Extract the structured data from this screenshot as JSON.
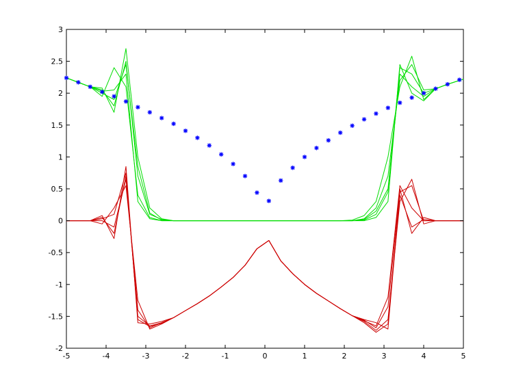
{
  "chart_data": {
    "type": "line",
    "title": "",
    "xlabel": "",
    "ylabel": "",
    "xlim": [
      -5,
      5
    ],
    "ylim": [
      -2,
      3
    ],
    "grid": false,
    "box": true,
    "x_ticks": [
      -5,
      -4,
      -3,
      -2,
      -1,
      0,
      1,
      2,
      3,
      4,
      5
    ],
    "y_ticks": [
      -2,
      -1.5,
      -1,
      -0.5,
      0,
      0.5,
      1,
      1.5,
      2,
      2.5,
      3
    ],
    "x_tick_labels": [
      "-5",
      "-4",
      "-3",
      "-2",
      "-1",
      "0",
      "1",
      "2",
      "3",
      "4",
      "5"
    ],
    "y_tick_labels": [
      "-2",
      "-1.5",
      "-1",
      "-0.5",
      "0",
      "0.5",
      "1",
      "1.5",
      "2",
      "2.5",
      "3"
    ],
    "colors": {
      "green": "#00dd00",
      "red": "#cc0000",
      "marker": "#0000ff",
      "axis": "#000000"
    },
    "series": [
      {
        "marker": "*",
        "color": "#0000ff",
        "x": [
          -5.0,
          -4.7,
          -4.4,
          -4.1,
          -3.8,
          -3.5,
          -3.2,
          -2.9,
          -2.6,
          -2.3,
          -2.0,
          -1.7,
          -1.4,
          -1.1,
          -0.8,
          -0.5,
          -0.2,
          0.1,
          0.4,
          0.7,
          1.0,
          1.3,
          1.6,
          1.9,
          2.2,
          2.5,
          2.8,
          3.1,
          3.4,
          3.7,
          4.0,
          4.3,
          4.6,
          4.9
        ],
        "y": [
          2.24,
          2.17,
          2.1,
          2.02,
          1.95,
          1.87,
          1.78,
          1.7,
          1.61,
          1.52,
          1.41,
          1.3,
          1.18,
          1.04,
          0.89,
          0.7,
          0.44,
          0.31,
          0.63,
          0.83,
          1.0,
          1.14,
          1.26,
          1.38,
          1.49,
          1.59,
          1.68,
          1.77,
          1.85,
          1.93,
          2.0,
          2.07,
          2.14,
          2.21
        ]
      },
      {
        "color": "#00dd00",
        "x": [
          -5,
          -4.7,
          -4.4,
          -4.1,
          -3.8,
          -3.5,
          -3.2,
          -2.9,
          -2.6,
          -2.3,
          -2.0,
          -1.7,
          -1.4,
          -1.1,
          -0.8,
          -0.5,
          -0.2,
          0.1,
          0.4,
          0.7,
          1.0,
          1.3,
          1.6,
          1.9,
          2.2,
          2.5,
          2.8,
          3.1,
          3.4,
          3.7,
          4.0,
          4.3,
          4.6,
          5
        ],
        "y": [
          2.24,
          2.17,
          2.1,
          2.05,
          1.8,
          2.5,
          0.7,
          0.1,
          0.02,
          0,
          0,
          0,
          0,
          0,
          0,
          0,
          0,
          0,
          0,
          0,
          0,
          0,
          0,
          0,
          0,
          0.02,
          0.15,
          0.5,
          2.3,
          2.1,
          1.95,
          2.07,
          2.14,
          2.22
        ]
      },
      {
        "color": "#00dd00",
        "x": [
          -5,
          -4.7,
          -4.4,
          -4.1,
          -3.8,
          -3.5,
          -3.2,
          -2.9,
          -2.6,
          -2.3,
          -2.0,
          -1.7,
          -1.4,
          -1.1,
          -0.8,
          -0.5,
          -0.2,
          0.1,
          0.4,
          0.7,
          1.0,
          1.3,
          1.6,
          1.9,
          2.2,
          2.5,
          2.8,
          3.1,
          3.4,
          3.7,
          4.0,
          4.3,
          4.6,
          5
        ],
        "y": [
          2.24,
          2.17,
          2.1,
          1.95,
          2.4,
          2.1,
          0.4,
          0.05,
          0,
          0,
          0,
          0,
          0,
          0,
          0,
          0,
          0,
          0,
          0,
          0,
          0,
          0,
          0,
          0,
          0,
          0,
          0.05,
          0.3,
          2.45,
          2.0,
          1.88,
          2.07,
          2.14,
          2.22
        ]
      },
      {
        "color": "#00dd00",
        "x": [
          -5,
          -4.7,
          -4.4,
          -4.1,
          -3.8,
          -3.5,
          -3.2,
          -2.9,
          -2.6,
          -2.3,
          -2.0,
          -1.7,
          -1.4,
          -1.1,
          -0.8,
          -0.5,
          -0.2,
          0.1,
          0.4,
          0.7,
          1.0,
          1.3,
          1.6,
          1.9,
          2.2,
          2.5,
          2.8,
          3.1,
          3.4,
          3.7,
          4.0,
          4.3,
          4.6,
          5
        ],
        "y": [
          2.24,
          2.17,
          2.1,
          2.08,
          1.7,
          2.7,
          1.0,
          0.2,
          0.03,
          0,
          0,
          0,
          0,
          0,
          0,
          0,
          0,
          0,
          0,
          0,
          0,
          0,
          0,
          0,
          0.01,
          0.08,
          0.3,
          1.0,
          2.1,
          2.58,
          1.9,
          2.07,
          2.14,
          2.22
        ]
      },
      {
        "color": "#00dd00",
        "x": [
          -5,
          -4.7,
          -4.4,
          -4.1,
          -3.8,
          -3.5,
          -3.2,
          -2.9,
          -2.6,
          -2.3,
          -2.0,
          -1.7,
          -1.4,
          -1.1,
          -0.8,
          -0.5,
          -0.2,
          0.1,
          0.4,
          0.7,
          1.0,
          1.3,
          1.6,
          1.9,
          2.2,
          2.5,
          2.8,
          3.1,
          3.4,
          3.7,
          4.0,
          4.3,
          4.6,
          5
        ],
        "y": [
          2.24,
          2.17,
          2.1,
          2.0,
          1.9,
          2.45,
          0.85,
          0.12,
          0.01,
          0,
          0,
          0,
          0,
          0,
          0,
          0,
          0,
          0,
          0,
          0,
          0,
          0,
          0,
          0,
          0,
          0.03,
          0.2,
          0.7,
          2.2,
          2.45,
          2.05,
          2.07,
          2.14,
          2.22
        ]
      },
      {
        "color": "#00dd00",
        "x": [
          -5,
          -4.7,
          -4.4,
          -4.1,
          -3.8,
          -3.5,
          -3.2,
          -2.9,
          -2.6,
          -2.3,
          -2.0,
          -1.7,
          -1.4,
          -1.1,
          -0.8,
          -0.5,
          -0.2,
          0.1,
          0.4,
          0.7,
          1.0,
          1.3,
          1.6,
          1.9,
          2.2,
          2.5,
          2.8,
          3.1,
          3.4,
          3.7,
          4.0,
          4.3,
          4.6,
          5
        ],
        "y": [
          2.24,
          2.17,
          2.1,
          2.03,
          2.05,
          2.3,
          0.3,
          0.03,
          0,
          0,
          0,
          0,
          0,
          0,
          0,
          0,
          0,
          0,
          0,
          0,
          0,
          0,
          0,
          0,
          0,
          0.01,
          0.1,
          0.45,
          2.4,
          2.3,
          2.0,
          2.07,
          2.14,
          2.22
        ]
      },
      {
        "color": "#cc0000",
        "x": [
          -5,
          -4.7,
          -4.4,
          -4.1,
          -3.8,
          -3.5,
          -3.2,
          -2.9,
          -2.6,
          -2.3,
          -2.0,
          -1.7,
          -1.4,
          -1.1,
          -0.8,
          -0.5,
          -0.2,
          0.1,
          0.4,
          0.7,
          1.0,
          1.3,
          1.6,
          1.9,
          2.2,
          2.5,
          2.8,
          3.1,
          3.4,
          3.7,
          4.0,
          4.3,
          4.6,
          5
        ],
        "y": [
          0,
          0,
          0,
          0.05,
          -0.2,
          0.7,
          -1.5,
          -1.65,
          -1.6,
          -1.52,
          -1.41,
          -1.3,
          -1.18,
          -1.04,
          -0.89,
          -0.7,
          -0.44,
          -0.31,
          -0.63,
          -0.83,
          -1.0,
          -1.14,
          -1.26,
          -1.38,
          -1.49,
          -1.55,
          -1.6,
          -1.7,
          0.4,
          -0.1,
          0.02,
          0,
          0,
          0
        ]
      },
      {
        "color": "#cc0000",
        "x": [
          -5,
          -4.7,
          -4.4,
          -4.1,
          -3.8,
          -3.5,
          -3.2,
          -2.9,
          -2.6,
          -2.3,
          -2.0,
          -1.7,
          -1.4,
          -1.1,
          -0.8,
          -0.5,
          -0.2,
          0.1,
          0.4,
          0.7,
          1.0,
          1.3,
          1.6,
          1.9,
          2.2,
          2.5,
          2.8,
          3.1,
          3.4,
          3.7,
          4.0,
          4.3,
          4.6,
          5
        ],
        "y": [
          0,
          0,
          0,
          -0.05,
          0.2,
          0.55,
          -1.25,
          -1.7,
          -1.62,
          -1.52,
          -1.41,
          -1.3,
          -1.18,
          -1.04,
          -0.89,
          -0.7,
          -0.44,
          -0.31,
          -0.63,
          -0.83,
          -1.0,
          -1.14,
          -1.26,
          -1.38,
          -1.49,
          -1.57,
          -1.65,
          -1.2,
          0.55,
          0.2,
          0.0,
          0,
          0,
          0
        ]
      },
      {
        "color": "#cc0000",
        "x": [
          -5,
          -4.7,
          -4.4,
          -4.1,
          -3.8,
          -3.5,
          -3.2,
          -2.9,
          -2.6,
          -2.3,
          -2.0,
          -1.7,
          -1.4,
          -1.1,
          -0.8,
          -0.5,
          -0.2,
          0.1,
          0.4,
          0.7,
          1.0,
          1.3,
          1.6,
          1.9,
          2.2,
          2.5,
          2.8,
          3.1,
          3.4,
          3.7,
          4.0,
          4.3,
          4.6,
          5
        ],
        "y": [
          0,
          0,
          0,
          0.08,
          -0.28,
          0.85,
          -1.6,
          -1.62,
          -1.58,
          -1.52,
          -1.41,
          -1.3,
          -1.18,
          -1.04,
          -0.89,
          -0.7,
          -0.44,
          -0.31,
          -0.63,
          -0.83,
          -1.0,
          -1.14,
          -1.26,
          -1.38,
          -1.49,
          -1.58,
          -1.72,
          -1.55,
          0.3,
          0.65,
          -0.05,
          0,
          0,
          0
        ]
      },
      {
        "color": "#cc0000",
        "x": [
          -5,
          -4.7,
          -4.4,
          -4.1,
          -3.8,
          -3.5,
          -3.2,
          -2.9,
          -2.6,
          -2.3,
          -2.0,
          -1.7,
          -1.4,
          -1.1,
          -0.8,
          -0.5,
          -0.2,
          0.1,
          0.4,
          0.7,
          1.0,
          1.3,
          1.6,
          1.9,
          2.2,
          2.5,
          2.8,
          3.1,
          3.4,
          3.7,
          4.0,
          4.3,
          4.6,
          5
        ],
        "y": [
          0,
          0,
          0,
          0.0,
          -0.1,
          0.65,
          -1.4,
          -1.68,
          -1.6,
          -1.52,
          -1.41,
          -1.3,
          -1.18,
          -1.04,
          -0.89,
          -0.7,
          -0.44,
          -0.31,
          -0.63,
          -0.83,
          -1.0,
          -1.14,
          -1.26,
          -1.38,
          -1.49,
          -1.56,
          -1.68,
          -1.35,
          0.5,
          -0.2,
          0.05,
          0,
          0,
          0
        ]
      },
      {
        "color": "#cc0000",
        "x": [
          -5,
          -4.7,
          -4.4,
          -4.1,
          -3.8,
          -3.5,
          -3.2,
          -2.9,
          -2.6,
          -2.3,
          -2.0,
          -1.7,
          -1.4,
          -1.1,
          -0.8,
          -0.5,
          -0.2,
          0.1,
          0.4,
          0.7,
          1.0,
          1.3,
          1.6,
          1.9,
          2.2,
          2.5,
          2.8,
          3.1,
          3.4,
          3.7,
          4.0,
          4.3,
          4.6,
          5
        ],
        "y": [
          0,
          0,
          0,
          0.03,
          0.1,
          0.75,
          -1.55,
          -1.66,
          -1.61,
          -1.52,
          -1.41,
          -1.3,
          -1.18,
          -1.04,
          -0.89,
          -0.7,
          -0.44,
          -0.31,
          -0.63,
          -0.83,
          -1.0,
          -1.14,
          -1.26,
          -1.38,
          -1.49,
          -1.6,
          -1.75,
          -1.62,
          0.45,
          0.55,
          0.0,
          0,
          0,
          0
        ]
      }
    ]
  }
}
